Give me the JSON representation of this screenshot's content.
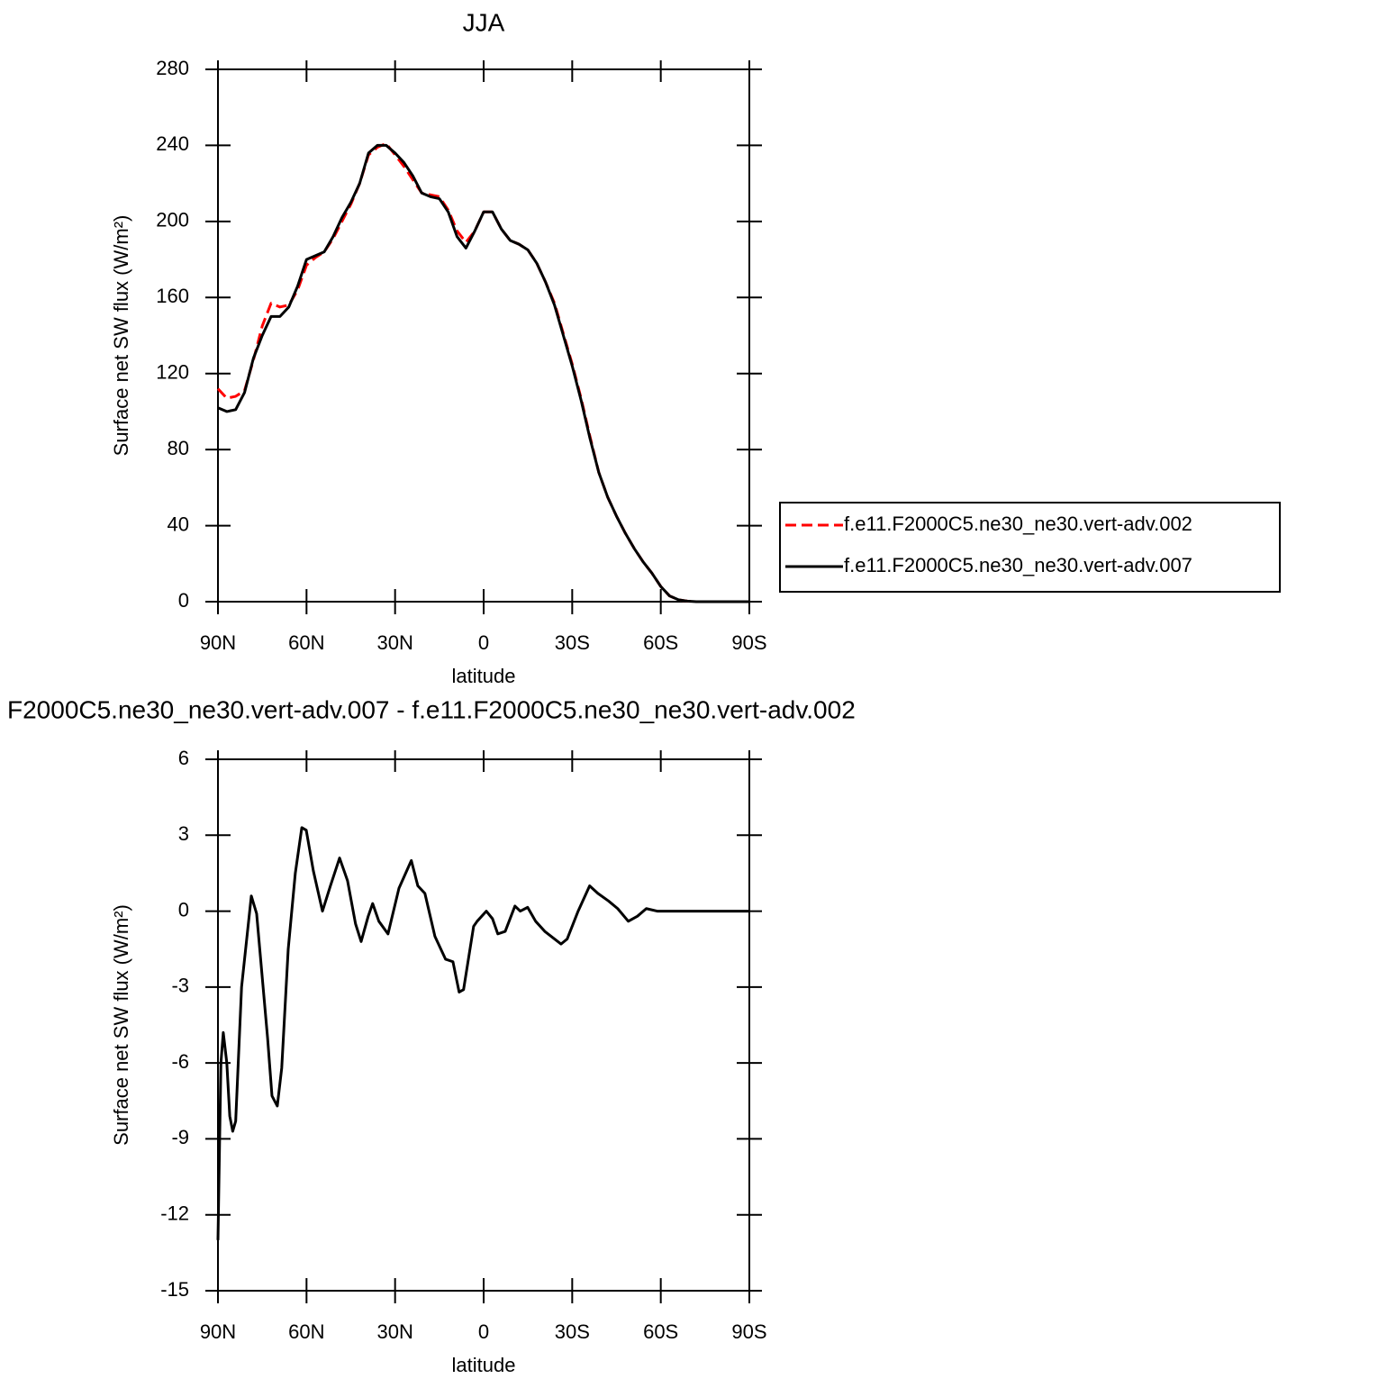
{
  "chart_data": [
    {
      "type": "line",
      "title": "JJA",
      "xlabel": "latitude",
      "ylabel": "Surface net SW flux (W/m²)",
      "x": [
        90,
        87,
        84,
        81,
        78,
        75,
        72,
        69,
        66,
        63,
        60,
        57,
        54,
        51,
        48,
        45,
        42,
        39,
        36,
        33,
        30,
        27,
        24,
        21,
        18,
        15,
        12,
        9,
        6,
        3,
        0,
        -3,
        -6,
        -9,
        -12,
        -15,
        -18,
        -21,
        -24,
        -27,
        -30,
        -33,
        -36,
        -39,
        -42,
        -45,
        -48,
        -51,
        -54,
        -57,
        -60,
        -63,
        -66,
        -69,
        -72,
        -75,
        -78,
        -81,
        -84,
        -87,
        -90
      ],
      "series": [
        {
          "name": "f.e11.F2000C5.ne30_ne30.vert-adv.002",
          "color": "#ff0000",
          "style": "dashed",
          "values": [
            112,
            107,
            108,
            111,
            127,
            145,
            157,
            155,
            156,
            164,
            177,
            181,
            184,
            191,
            200,
            209,
            220,
            235,
            239,
            241,
            235,
            229,
            222,
            215,
            214,
            213,
            206,
            195,
            189,
            195,
            205,
            205,
            196,
            190,
            188,
            185,
            178,
            168,
            157,
            141,
            125,
            107,
            87,
            68,
            55,
            45,
            36,
            28,
            21,
            15,
            8,
            3,
            1,
            0.3,
            0,
            0,
            0,
            0,
            0,
            0,
            0
          ]
        },
        {
          "name": "f.e11.F2000C5.ne30_ne30.vert-adv.007",
          "color": "#000000",
          "style": "solid",
          "values": [
            102,
            100,
            101,
            110,
            128,
            140,
            150,
            150,
            155,
            166,
            180,
            182,
            184,
            192,
            202,
            210,
            220,
            236,
            240,
            240,
            236,
            231,
            224,
            215,
            213,
            212,
            205,
            192,
            186,
            195,
            205,
            205,
            196,
            190,
            188,
            185,
            178,
            168,
            156,
            140,
            124,
            106,
            86,
            68,
            55,
            45,
            36,
            28,
            21,
            15,
            8,
            3,
            1,
            0.3,
            0,
            0,
            0,
            0,
            0,
            0,
            0
          ]
        }
      ],
      "xlim": [
        90,
        -90
      ],
      "xticks": [
        {
          "value": 90,
          "label": "90N"
        },
        {
          "value": 60,
          "label": "60N"
        },
        {
          "value": 30,
          "label": "30N"
        },
        0,
        {
          "value": -30,
          "label": "30S"
        },
        {
          "value": -60,
          "label": "60S"
        },
        {
          "value": -90,
          "label": "90S"
        }
      ],
      "ylim": [
        0,
        280
      ],
      "yticks": [
        0,
        40,
        80,
        120,
        160,
        200,
        240,
        280
      ],
      "legend": "right"
    },
    {
      "type": "line",
      "title": "F2000C5.ne30_ne30.vert-adv.007 - f.e11.F2000C5.ne30_ne30.vert-adv.002",
      "xlabel": "latitude",
      "ylabel": "Surface net SW flux (W/m²)",
      "x": [
        90,
        89,
        88.2,
        87,
        86,
        85,
        84,
        82,
        78.7,
        76.9,
        73.2,
        71.7,
        69.9,
        68.4,
        66.2,
        63.8,
        61.6,
        60.1,
        57.7,
        54.6,
        51.9,
        48.8,
        46.1,
        43.4,
        41.5,
        39.1,
        37.6,
        35.5,
        32.4,
        28.7,
        24.5,
        22.3,
        19.9,
        16.5,
        12.9,
        10.4,
        8.3,
        6.8,
        3.4,
        2.2,
        -0.9,
        -3,
        -4.8,
        -7.3,
        -10.6,
        -12.4,
        -14.9,
        -17.6,
        -20.7,
        -26.2,
        -28.3,
        -32,
        -35.9,
        -38.7,
        -42.3,
        -45.4,
        -49,
        -52.1,
        -55.1,
        -58.8,
        -65,
        -90
      ],
      "values": [
        -13,
        -6,
        -4.8,
        -6,
        -8.1,
        -8.7,
        -8.3,
        -3,
        0.6,
        -0.1,
        -5,
        -7.3,
        -7.7,
        -6.2,
        -1.5,
        1.5,
        3.3,
        3.2,
        1.6,
        0,
        1,
        2.1,
        1.2,
        -0.5,
        -1.2,
        -0.2,
        0.3,
        -0.4,
        -0.9,
        0.9,
        2,
        1,
        0.7,
        -1,
        -1.9,
        -2,
        -3.2,
        -3.1,
        -0.6,
        -0.4,
        0,
        -0.3,
        -0.9,
        -0.8,
        0.2,
        0,
        0.15,
        -0.4,
        -0.8,
        -1.3,
        -1.1,
        0,
        1,
        0.7,
        0.4,
        0.1,
        -0.4,
        -0.2,
        0.1,
        0,
        0,
        0
      ],
      "color": "#000000",
      "xlim": [
        90,
        -90
      ],
      "xticks": [
        {
          "value": 90,
          "label": "90N"
        },
        {
          "value": 60,
          "label": "60N"
        },
        {
          "value": 30,
          "label": "30N"
        },
        0,
        {
          "value": -30,
          "label": "30S"
        },
        {
          "value": -60,
          "label": "60S"
        },
        {
          "value": -90,
          "label": "90S"
        }
      ],
      "ylim": [
        -15,
        6
      ],
      "yticks": [
        -15,
        -12,
        -9,
        -6,
        -3,
        0,
        3,
        6
      ]
    }
  ]
}
